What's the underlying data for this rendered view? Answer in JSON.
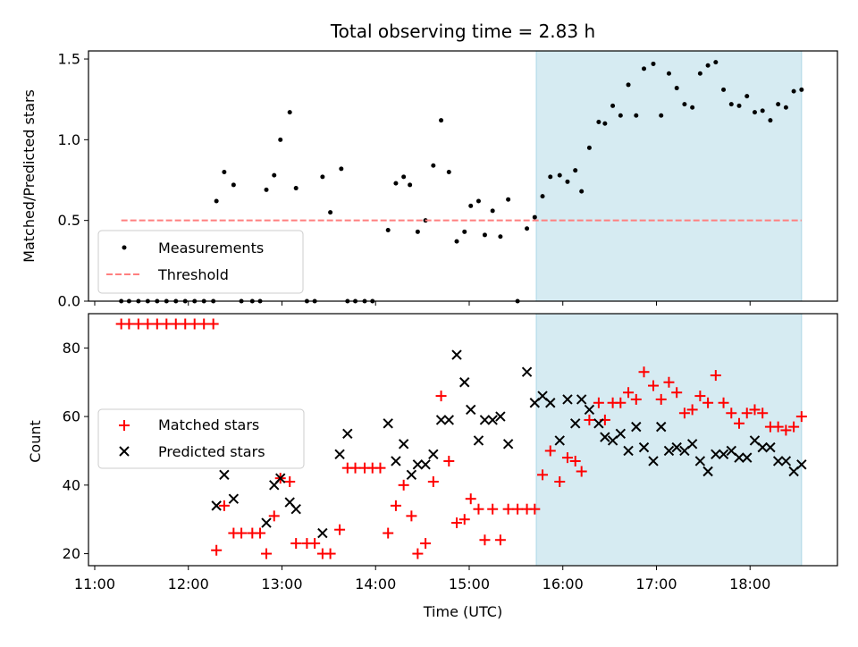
{
  "figure_title": "Total observing time = 2.83 h",
  "chart_data": [
    {
      "type": "scatter",
      "panel": "top",
      "ylabel": "Matched/Predicted stars",
      "xlabel": "",
      "xlim": [
        "10:56",
        "18:56"
      ],
      "ylim": [
        0,
        1.55
      ],
      "yticks": [
        0.0,
        0.5,
        1.0,
        1.5
      ],
      "ytick_labels": [
        "0.0",
        "0.5",
        "1.0",
        "1.5"
      ],
      "shaded_region": {
        "start": "15:43",
        "end": "18:33",
        "color": "#add8e6"
      },
      "legend": {
        "placement": "lower-left"
      },
      "series": [
        {
          "name": "Measurements",
          "marker": "dot",
          "color": "#000000",
          "points": [
            [
              "11:17",
              0
            ],
            [
              "11:22",
              0
            ],
            [
              "11:28",
              0
            ],
            [
              "11:34",
              0
            ],
            [
              "11:40",
              0
            ],
            [
              "11:46",
              0
            ],
            [
              "11:52",
              0
            ],
            [
              "11:58",
              0
            ],
            [
              "12:04",
              0
            ],
            [
              "12:10",
              0
            ],
            [
              "12:16",
              0
            ],
            [
              "12:18",
              0.62
            ],
            [
              "12:23",
              0.8
            ],
            [
              "12:29",
              0.72
            ],
            [
              "12:34",
              0
            ],
            [
              "12:41",
              0
            ],
            [
              "12:46",
              0
            ],
            [
              "12:50",
              0.69
            ],
            [
              "12:55",
              0.78
            ],
            [
              "12:59",
              1.0
            ],
            [
              "13:05",
              1.17
            ],
            [
              "13:09",
              0.7
            ],
            [
              "13:16",
              0
            ],
            [
              "13:21",
              0
            ],
            [
              "13:26",
              0.77
            ],
            [
              "13:31",
              0.55
            ],
            [
              "13:38",
              0.82
            ],
            [
              "13:42",
              0
            ],
            [
              "13:47",
              0
            ],
            [
              "13:53",
              0
            ],
            [
              "13:58",
              0
            ],
            [
              "14:08",
              0.44
            ],
            [
              "14:13",
              0.73
            ],
            [
              "14:18",
              0.77
            ],
            [
              "14:22",
              0.72
            ],
            [
              "14:27",
              0.43
            ],
            [
              "14:32",
              0.5
            ],
            [
              "14:37",
              0.84
            ],
            [
              "14:42",
              1.12
            ],
            [
              "14:47",
              0.8
            ],
            [
              "14:52",
              0.37
            ],
            [
              "14:57",
              0.43
            ],
            [
              "15:01",
              0.59
            ],
            [
              "15:06",
              0.62
            ],
            [
              "15:10",
              0.41
            ],
            [
              "15:15",
              0.56
            ],
            [
              "15:20",
              0.4
            ],
            [
              "15:25",
              0.63
            ],
            [
              "15:31",
              0
            ],
            [
              "15:37",
              0.45
            ],
            [
              "15:42",
              0.52
            ],
            [
              "15:47",
              0.65
            ],
            [
              "15:52",
              0.77
            ],
            [
              "15:58",
              0.78
            ],
            [
              "16:03",
              0.74
            ],
            [
              "16:08",
              0.81
            ],
            [
              "16:12",
              0.68
            ],
            [
              "16:17",
              0.95
            ],
            [
              "16:23",
              1.11
            ],
            [
              "16:27",
              1.1
            ],
            [
              "16:32",
              1.21
            ],
            [
              "16:37",
              1.15
            ],
            [
              "16:42",
              1.34
            ],
            [
              "16:47",
              1.15
            ],
            [
              "16:52",
              1.44
            ],
            [
              "16:58",
              1.47
            ],
            [
              "17:03",
              1.15
            ],
            [
              "17:08",
              1.41
            ],
            [
              "17:13",
              1.32
            ],
            [
              "17:18",
              1.22
            ],
            [
              "17:23",
              1.2
            ],
            [
              "17:28",
              1.41
            ],
            [
              "17:33",
              1.46
            ],
            [
              "17:38",
              1.48
            ],
            [
              "17:43",
              1.31
            ],
            [
              "17:48",
              1.22
            ],
            [
              "17:53",
              1.21
            ],
            [
              "17:58",
              1.27
            ],
            [
              "18:03",
              1.17
            ],
            [
              "18:08",
              1.18
            ],
            [
              "18:13",
              1.12
            ],
            [
              "18:18",
              1.22
            ],
            [
              "18:23",
              1.2
            ],
            [
              "18:28",
              1.3
            ],
            [
              "18:33",
              1.31
            ]
          ]
        },
        {
          "name": "Threshold",
          "type": "line",
          "style": "dashed",
          "color": "#ff7f7f",
          "points": [
            [
              "11:17",
              0.5
            ],
            [
              "18:33",
              0.5
            ]
          ]
        }
      ]
    },
    {
      "type": "scatter",
      "panel": "bottom",
      "ylabel": "Count",
      "xlabel": "Time (UTC)",
      "xlim": [
        "10:56",
        "18:56"
      ],
      "ylim": [
        16.5,
        90
      ],
      "yticks": [
        20,
        40,
        60,
        80
      ],
      "xticks": [
        "11:00",
        "12:00",
        "13:00",
        "14:00",
        "15:00",
        "16:00",
        "17:00",
        "18:00"
      ],
      "shaded_region": {
        "start": "15:43",
        "end": "18:33",
        "color": "#add8e6"
      },
      "legend": {
        "placement": "center-left"
      },
      "series": [
        {
          "name": "Matched stars",
          "marker": "plus",
          "color": "#ff0000",
          "points": [
            [
              "11:17",
              87
            ],
            [
              "11:22",
              87
            ],
            [
              "11:28",
              87
            ],
            [
              "11:34",
              87
            ],
            [
              "11:40",
              87
            ],
            [
              "11:46",
              87
            ],
            [
              "11:52",
              87
            ],
            [
              "11:58",
              87
            ],
            [
              "12:04",
              87
            ],
            [
              "12:10",
              87
            ],
            [
              "12:16",
              87
            ],
            [
              "12:18",
              21
            ],
            [
              "12:23",
              34
            ],
            [
              "12:29",
              26
            ],
            [
              "12:34",
              26
            ],
            [
              "12:41",
              26
            ],
            [
              "12:46",
              26
            ],
            [
              "12:50",
              20
            ],
            [
              "12:55",
              31
            ],
            [
              "12:59",
              42
            ],
            [
              "13:05",
              41
            ],
            [
              "13:09",
              23
            ],
            [
              "13:16",
              23
            ],
            [
              "13:21",
              23
            ],
            [
              "13:26",
              20
            ],
            [
              "13:31",
              20
            ],
            [
              "13:37",
              27
            ],
            [
              "13:42",
              45
            ],
            [
              "13:47",
              45
            ],
            [
              "13:53",
              45
            ],
            [
              "13:58",
              45
            ],
            [
              "14:03",
              45
            ],
            [
              "14:08",
              26
            ],
            [
              "14:13",
              34
            ],
            [
              "14:18",
              40
            ],
            [
              "14:23",
              31
            ],
            [
              "14:27",
              20
            ],
            [
              "14:32",
              23
            ],
            [
              "14:37",
              41
            ],
            [
              "14:42",
              66
            ],
            [
              "14:47",
              47
            ],
            [
              "14:52",
              29
            ],
            [
              "14:57",
              30
            ],
            [
              "15:01",
              36
            ],
            [
              "15:06",
              33
            ],
            [
              "15:10",
              24
            ],
            [
              "15:15",
              33
            ],
            [
              "15:20",
              24
            ],
            [
              "15:25",
              33
            ],
            [
              "15:31",
              33
            ],
            [
              "15:37",
              33
            ],
            [
              "15:42",
              33
            ],
            [
              "15:47",
              43
            ],
            [
              "15:52",
              50
            ],
            [
              "15:58",
              41
            ],
            [
              "16:03",
              48
            ],
            [
              "16:08",
              47
            ],
            [
              "16:12",
              44
            ],
            [
              "16:17",
              59
            ],
            [
              "16:23",
              64
            ],
            [
              "16:27",
              59
            ],
            [
              "16:32",
              64
            ],
            [
              "16:37",
              64
            ],
            [
              "16:42",
              67
            ],
            [
              "16:47",
              65
            ],
            [
              "16:52",
              73
            ],
            [
              "16:58",
              69
            ],
            [
              "17:03",
              65
            ],
            [
              "17:08",
              70
            ],
            [
              "17:13",
              67
            ],
            [
              "17:18",
              61
            ],
            [
              "17:23",
              62
            ],
            [
              "17:28",
              66
            ],
            [
              "17:33",
              64
            ],
            [
              "17:38",
              72
            ],
            [
              "17:43",
              64
            ],
            [
              "17:48",
              61
            ],
            [
              "17:53",
              58
            ],
            [
              "17:58",
              61
            ],
            [
              "18:03",
              62
            ],
            [
              "18:08",
              61
            ],
            [
              "18:13",
              57
            ],
            [
              "18:18",
              57
            ],
            [
              "18:23",
              56
            ],
            [
              "18:28",
              57
            ],
            [
              "18:33",
              60
            ]
          ]
        },
        {
          "name": "Predicted stars",
          "marker": "x",
          "color": "#000000",
          "points": [
            [
              "12:18",
              34
            ],
            [
              "12:23",
              43
            ],
            [
              "12:29",
              36
            ],
            [
              "12:50",
              29
            ],
            [
              "12:55",
              40
            ],
            [
              "12:59",
              42
            ],
            [
              "13:05",
              35
            ],
            [
              "13:09",
              33
            ],
            [
              "13:26",
              26
            ],
            [
              "13:37",
              49
            ],
            [
              "13:42",
              55
            ],
            [
              "14:08",
              58
            ],
            [
              "14:13",
              47
            ],
            [
              "14:18",
              52
            ],
            [
              "14:23",
              43
            ],
            [
              "14:27",
              46
            ],
            [
              "14:32",
              46
            ],
            [
              "14:37",
              49
            ],
            [
              "14:42",
              59
            ],
            [
              "14:47",
              59
            ],
            [
              "14:52",
              78
            ],
            [
              "14:57",
              70
            ],
            [
              "15:01",
              62
            ],
            [
              "15:06",
              53
            ],
            [
              "15:10",
              59
            ],
            [
              "15:15",
              59
            ],
            [
              "15:20",
              60
            ],
            [
              "15:25",
              52
            ],
            [
              "15:37",
              73
            ],
            [
              "15:42",
              64
            ],
            [
              "15:47",
              66
            ],
            [
              "15:52",
              64
            ],
            [
              "15:58",
              53
            ],
            [
              "16:03",
              65
            ],
            [
              "16:08",
              58
            ],
            [
              "16:12",
              65
            ],
            [
              "16:17",
              62
            ],
            [
              "16:23",
              58
            ],
            [
              "16:27",
              54
            ],
            [
              "16:32",
              53
            ],
            [
              "16:37",
              55
            ],
            [
              "16:42",
              50
            ],
            [
              "16:47",
              57
            ],
            [
              "16:52",
              51
            ],
            [
              "16:58",
              47
            ],
            [
              "17:03",
              57
            ],
            [
              "17:08",
              50
            ],
            [
              "17:13",
              51
            ],
            [
              "17:18",
              50
            ],
            [
              "17:23",
              52
            ],
            [
              "17:28",
              47
            ],
            [
              "17:33",
              44
            ],
            [
              "17:38",
              49
            ],
            [
              "17:43",
              49
            ],
            [
              "17:48",
              50
            ],
            [
              "17:53",
              48
            ],
            [
              "17:58",
              48
            ],
            [
              "18:03",
              53
            ],
            [
              "18:08",
              51
            ],
            [
              "18:13",
              51
            ],
            [
              "18:18",
              47
            ],
            [
              "18:23",
              47
            ],
            [
              "18:28",
              44
            ],
            [
              "18:33",
              46
            ]
          ]
        }
      ]
    }
  ]
}
